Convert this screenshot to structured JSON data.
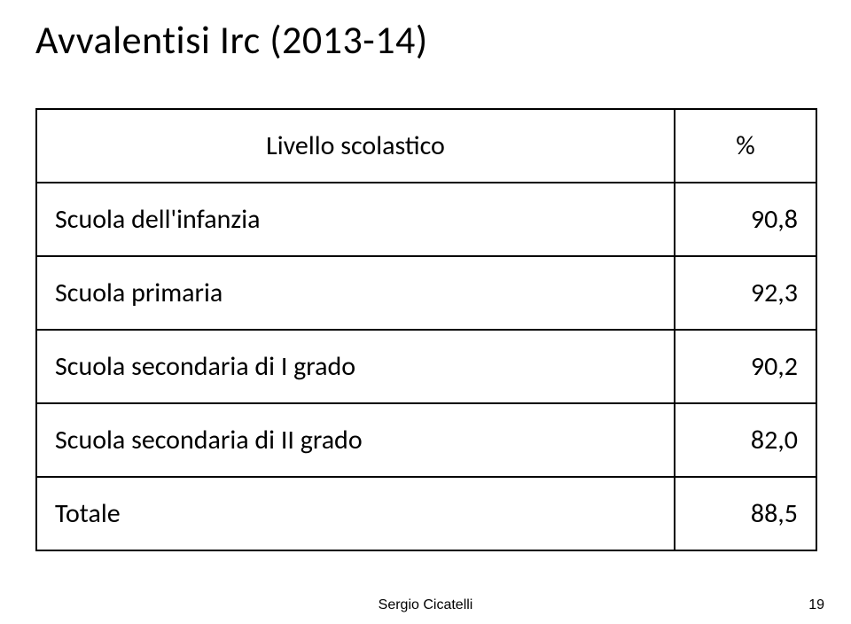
{
  "title": "Avvalentisi Irc (2013-14)",
  "table": {
    "columns": [
      "Livello scolastico",
      "%"
    ],
    "rows": [
      [
        "Scuola dell'infanzia",
        "90,8"
      ],
      [
        "Scuola primaria",
        "92,3"
      ],
      [
        "Scuola secondaria di I grado",
        "90,2"
      ],
      [
        "Scuola secondaria di II grado",
        "82,0"
      ],
      [
        "Totale",
        "88,5"
      ]
    ],
    "border_color": "#000000",
    "background_color": "#ffffff",
    "header_fontsize": 30,
    "cell_fontsize": 30,
    "label_col_width": 720,
    "value_col_width": 160
  },
  "footer": {
    "author": "Sergio Cicatelli",
    "page_number": "19"
  },
  "colors": {
    "background": "#ffffff",
    "text": "#000000",
    "border": "#000000"
  }
}
